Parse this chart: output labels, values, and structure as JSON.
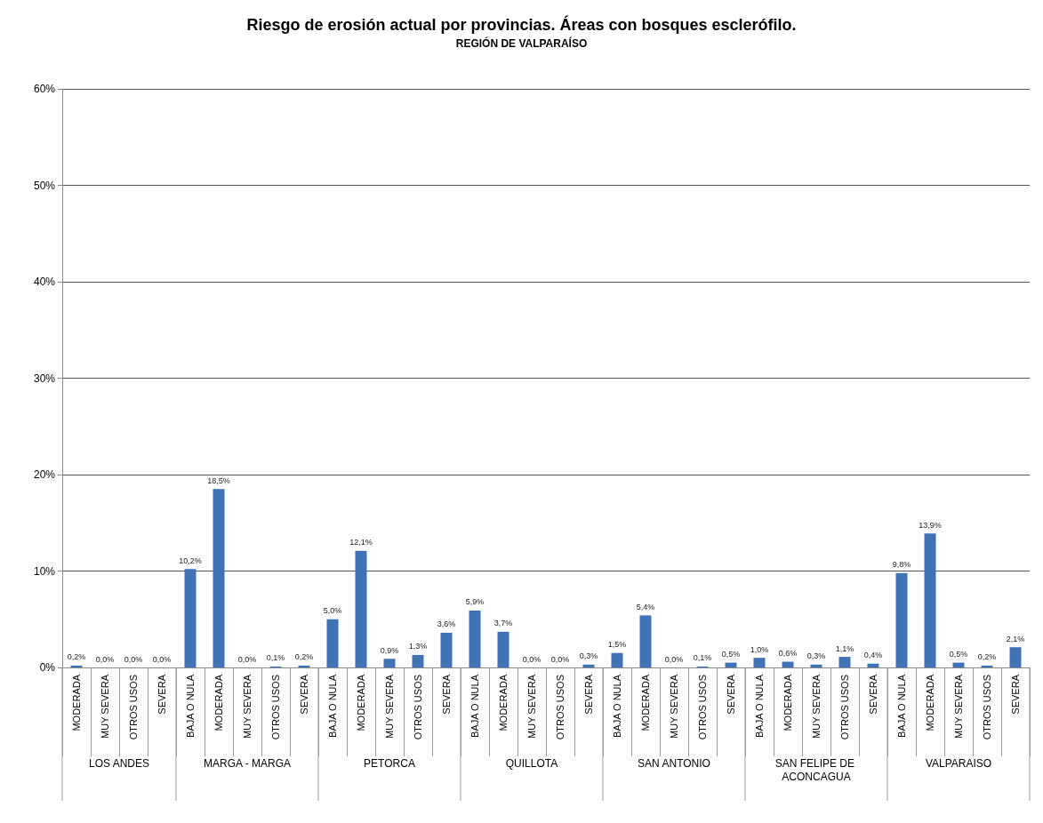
{
  "chart_data": {
    "type": "bar",
    "title": "Riesgo de erosión actual por provincias. Áreas con bosques esclerófilo.",
    "subtitle": "REGIÓN DE VALPARAÍSO",
    "categories": [
      "MODERADA",
      "MUY SEVERA",
      "OTROS USOS",
      "SEVERA",
      "BAJA O NULA",
      "MODERADA",
      "MUY SEVERA",
      "OTROS USOS",
      "SEVERA",
      "BAJA O NULA",
      "MODERADA",
      "MUY SEVERA",
      "OTROS USOS",
      "SEVERA",
      "BAJA O NULA",
      "MODERADA",
      "MUY SEVERA",
      "OTROS USOS",
      "SEVERA",
      "BAJA O NULA",
      "MODERADA",
      "MUY SEVERA",
      "OTROS USOS",
      "SEVERA",
      "BAJA O NULA",
      "MODERADA",
      "MUY SEVERA",
      "OTROS USOS",
      "SEVERA",
      "BAJA O NULA",
      "MODERADA",
      "MUY SEVERA",
      "OTROS USOS",
      "SEVERA"
    ],
    "values": [
      0.2,
      0.0,
      0.0,
      0.0,
      10.2,
      18.5,
      0.0,
      0.1,
      0.2,
      5.0,
      12.1,
      0.9,
      1.3,
      3.6,
      5.9,
      3.7,
      0.0,
      0.0,
      0.3,
      1.5,
      5.4,
      0.0,
      0.1,
      0.5,
      1.0,
      0.6,
      0.3,
      1.1,
      0.4,
      9.8,
      13.9,
      0.5,
      0.2,
      2.1
    ],
    "value_labels": [
      "0,2%",
      "0,0%",
      "0,0%",
      "0,0%",
      "10,2%",
      "18,5%",
      "0,0%",
      "0,1%",
      "0,2%",
      "5,0%",
      "12,1%",
      "0,9%",
      "1,3%",
      "3,6%",
      "5,9%",
      "3,7%",
      "0,0%",
      "0,0%",
      "0,3%",
      "1,5%",
      "5,4%",
      "0,0%",
      "0,1%",
      "0,5%",
      "1,0%",
      "0,6%",
      "0,3%",
      "1,1%",
      "0,4%",
      "9,8%",
      "13,9%",
      "0,5%",
      "0,2%",
      "2,1%"
    ],
    "color": "#3f73b8",
    "ylim": [
      0,
      60
    ],
    "yticks": [
      {
        "value": 0,
        "label": "0%"
      },
      {
        "value": 10,
        "label": "10%"
      },
      {
        "value": 20,
        "label": "20%"
      },
      {
        "value": 30,
        "label": "30%"
      },
      {
        "value": 40,
        "label": "40%"
      },
      {
        "value": 50,
        "label": "50%"
      },
      {
        "value": 60,
        "label": "60%"
      }
    ],
    "grid": "y",
    "annotations": [
      "LOS ANDES",
      "MARGA - MARGA",
      "PETORCA",
      "QUILLOTA",
      "SAN ANTONIO",
      "SAN FELIPE DE ACONCAGUA",
      "VALPARAISO"
    ]
  }
}
